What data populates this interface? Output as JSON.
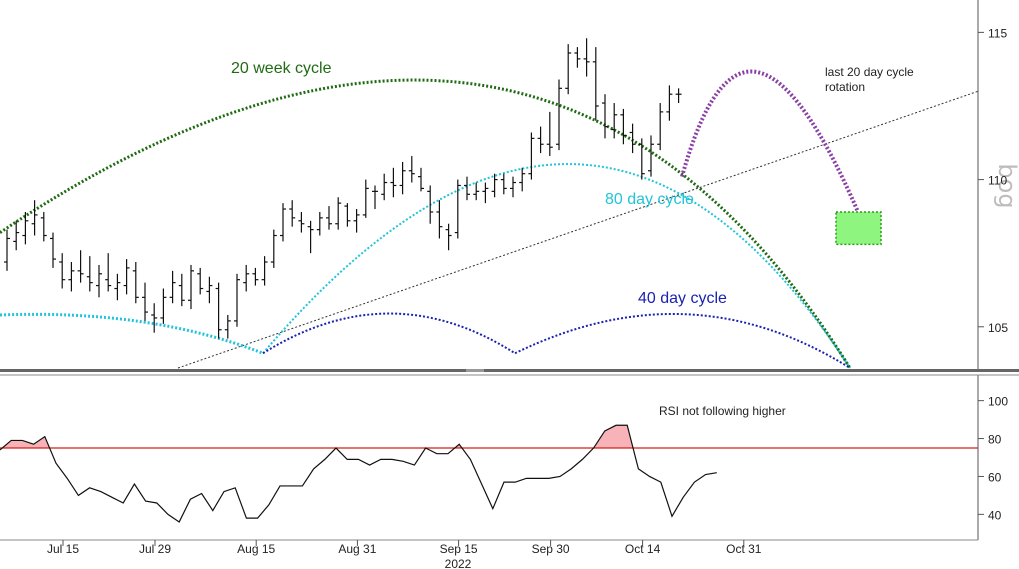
{
  "chart_data": [
    {
      "type": "ohlc",
      "panel": "price",
      "y_axis": {
        "ticks": [
          105,
          110,
          115
        ],
        "ylim": [
          103.6,
          116.1
        ],
        "side": "right"
      },
      "x_axis": {
        "ticks": [
          "Jul 15",
          "Jul 29",
          "Aug 15",
          "Aug 31",
          "Sep 15",
          "Sep 30",
          "Oct 14",
          "Oct 31"
        ],
        "year_label": "2022"
      },
      "ohlc": [
        [
          107.2,
          108.3,
          106.9,
          108.0
        ],
        [
          107.9,
          108.6,
          107.6,
          108.2
        ],
        [
          108.1,
          108.9,
          107.8,
          108.6
        ],
        [
          108.5,
          109.3,
          108.1,
          108.8
        ],
        [
          108.7,
          108.9,
          107.9,
          108.1
        ],
        [
          108.0,
          108.2,
          107.0,
          107.3
        ],
        [
          107.2,
          107.5,
          106.3,
          106.6
        ],
        [
          106.6,
          107.2,
          106.2,
          106.9
        ],
        [
          106.9,
          107.6,
          106.5,
          106.8
        ],
        [
          106.7,
          107.4,
          106.2,
          106.5
        ],
        [
          106.4,
          107.1,
          106.0,
          106.8
        ],
        [
          106.6,
          107.5,
          106.2,
          106.4
        ],
        [
          106.3,
          106.8,
          105.9,
          106.5
        ],
        [
          106.4,
          107.3,
          106.1,
          107.0
        ],
        [
          106.9,
          107.2,
          105.8,
          106.0
        ],
        [
          106.0,
          106.5,
          105.2,
          105.5
        ],
        [
          105.4,
          105.8,
          104.8,
          105.3
        ],
        [
          105.3,
          106.3,
          105.1,
          106.0
        ],
        [
          106.0,
          106.9,
          105.8,
          106.5
        ],
        [
          106.4,
          106.8,
          105.7,
          105.9
        ],
        [
          105.9,
          107.1,
          105.6,
          106.9
        ],
        [
          106.8,
          107.0,
          106.1,
          106.3
        ],
        [
          106.2,
          106.7,
          105.8,
          106.4
        ],
        [
          106.3,
          106.5,
          104.6,
          104.9
        ],
        [
          104.9,
          105.4,
          104.6,
          105.2
        ],
        [
          105.2,
          106.8,
          105.0,
          106.6
        ],
        [
          106.5,
          107.1,
          106.2,
          106.8
        ],
        [
          106.8,
          107.0,
          106.4,
          106.6
        ],
        [
          106.6,
          107.4,
          106.4,
          107.2
        ],
        [
          107.2,
          108.3,
          107.0,
          108.1
        ],
        [
          108.1,
          109.2,
          107.9,
          109.0
        ],
        [
          109.0,
          109.3,
          108.4,
          108.7
        ],
        [
          108.6,
          108.9,
          108.2,
          108.5
        ],
        [
          108.4,
          108.6,
          107.5,
          108.3
        ],
        [
          108.3,
          108.9,
          108.1,
          108.7
        ],
        [
          108.7,
          109.1,
          108.3,
          108.5
        ],
        [
          108.5,
          109.4,
          108.3,
          109.2
        ],
        [
          109.1,
          109.2,
          108.4,
          108.6
        ],
        [
          108.6,
          109.0,
          108.2,
          108.8
        ],
        [
          108.8,
          110.0,
          108.7,
          109.7
        ],
        [
          109.6,
          109.8,
          109.0,
          109.6
        ],
        [
          109.5,
          110.2,
          109.3,
          109.9
        ],
        [
          109.9,
          110.4,
          109.4,
          109.8
        ],
        [
          109.8,
          110.6,
          109.5,
          110.3
        ],
        [
          110.3,
          110.8,
          109.9,
          110.2
        ],
        [
          110.1,
          110.4,
          109.6,
          109.7
        ],
        [
          109.6,
          109.8,
          108.5,
          108.9
        ],
        [
          108.9,
          109.3,
          108.0,
          108.4
        ],
        [
          108.3,
          108.5,
          107.6,
          108.1
        ],
        [
          108.2,
          110.0,
          108.0,
          109.8
        ],
        [
          109.8,
          110.1,
          109.3,
          109.5
        ],
        [
          109.5,
          109.9,
          109.3,
          109.6
        ],
        [
          109.6,
          109.9,
          109.2,
          109.7
        ],
        [
          109.6,
          110.2,
          109.4,
          110.0
        ],
        [
          110.0,
          110.2,
          109.5,
          109.7
        ],
        [
          109.7,
          110.1,
          109.4,
          109.9
        ],
        [
          109.9,
          110.4,
          109.6,
          110.2
        ],
        [
          110.2,
          111.6,
          110.0,
          111.4
        ],
        [
          111.4,
          111.8,
          110.9,
          111.2
        ],
        [
          111.2,
          112.3,
          110.8,
          111.1
        ],
        [
          111.2,
          113.4,
          111.0,
          113.1
        ],
        [
          113.1,
          114.6,
          112.9,
          114.3
        ],
        [
          114.3,
          114.5,
          113.8,
          114.1
        ],
        [
          114.1,
          114.8,
          113.5,
          114.0
        ],
        [
          114.0,
          114.5,
          112.0,
          112.5
        ],
        [
          112.6,
          112.9,
          111.4,
          111.8
        ],
        [
          111.7,
          112.6,
          111.4,
          112.2
        ],
        [
          112.2,
          112.4,
          111.2,
          111.5
        ],
        [
          111.6,
          111.9,
          110.9,
          111.2
        ],
        [
          111.2,
          111.4,
          110.0,
          110.2
        ],
        [
          110.3,
          111.5,
          110.1,
          111.2
        ],
        [
          111.2,
          112.6,
          111.0,
          112.3
        ],
        [
          112.3,
          113.2,
          112.0,
          112.9
        ],
        [
          112.9,
          113.1,
          112.6,
          112.9
        ]
      ],
      "ohlc_first_date": "Jul 8",
      "overlays": [
        {
          "name": "20 week cycle",
          "color": "#1f6b12",
          "style": "dotted"
        },
        {
          "name": "80 day cycle",
          "color": "#22c4d8",
          "style": "dotted"
        },
        {
          "name": "40 day cycle",
          "color": "#1a22b0",
          "style": "dotted"
        },
        {
          "name": "last 20 day cycle rotation",
          "color": "#8a3fa6",
          "style": "dotted"
        },
        {
          "name": "trendline",
          "color": "#333333",
          "style": "dotted"
        }
      ],
      "annotations": [
        "20 week cycle",
        "80 day cycle",
        "40 day cycle",
        "last 20 day cycle\nrotation"
      ],
      "watermark": "bog",
      "target_box": {
        "color": "#8ef57e",
        "y_range": [
          107.8,
          108.9
        ]
      }
    },
    {
      "type": "line",
      "panel": "rsi",
      "y_axis": {
        "ticks": [
          40,
          60,
          80,
          100
        ],
        "ylim": [
          27,
          113
        ],
        "side": "right"
      },
      "threshold": 75,
      "threshold_color": "#d61c1c",
      "shade_color": "#f7b3b8",
      "annotation": "RSI not following higher",
      "values": [
        74,
        79,
        79,
        77,
        81,
        67,
        59,
        50,
        54,
        52,
        49,
        46,
        56,
        47,
        46,
        40,
        36,
        48,
        51,
        42,
        52,
        54,
        38,
        38,
        45,
        55,
        55,
        55,
        64,
        69,
        75,
        69,
        69,
        66,
        69,
        69,
        68,
        66,
        75,
        72,
        72,
        77,
        69,
        56,
        43,
        57,
        57,
        59,
        59,
        59,
        60,
        64,
        69,
        75,
        84,
        87,
        87,
        64,
        60,
        57,
        39,
        49,
        57,
        61,
        62
      ]
    }
  ]
}
